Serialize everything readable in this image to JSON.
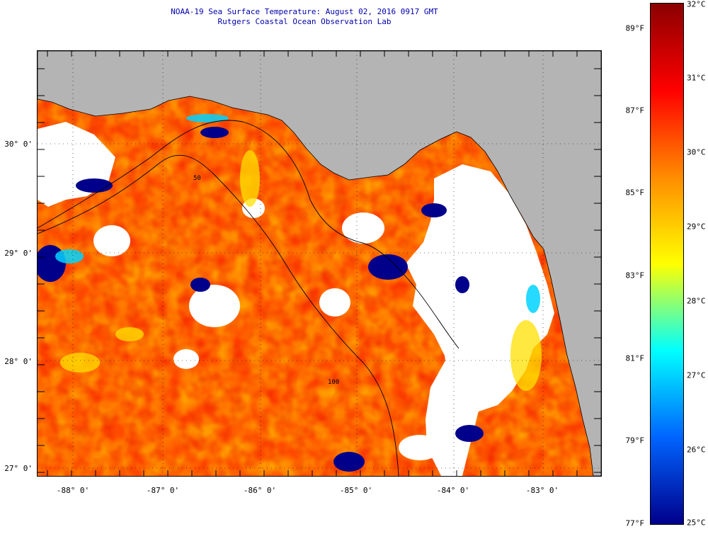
{
  "header": {
    "title": "NOAA-19 Sea Surface Temperature:  August 02, 2016 0917 GMT",
    "subtitle": "Rutgers Coastal Ocean Observation Lab"
  },
  "map": {
    "land_color": "#b4b4b4",
    "cloud_color": "#ffffff",
    "latitude_labels": [
      "30° 0'",
      "29° 0'",
      "28° 0'",
      "27° 0'"
    ],
    "longitude_labels": [
      "-88° 0'",
      "-87° 0'",
      "-86° 0'",
      "-85° 0'",
      "-84° 0'",
      "-83° 0'"
    ],
    "contour_labels": [
      "50",
      "100"
    ]
  },
  "colorbar": {
    "celsius_labels": [
      "32°C",
      "31°C",
      "30°C",
      "29°C",
      "28°C",
      "27°C",
      "26°C",
      "25°C"
    ],
    "fahrenheit_labels": [
      "89°F",
      "87°F",
      "85°F",
      "83°F",
      "81°F",
      "79°F",
      "77°F"
    ],
    "colors": [
      "#8b0000",
      "#ff0000",
      "#ff8c00",
      "#ffff00",
      "#00ffff",
      "#0064ff",
      "#00008b"
    ]
  }
}
